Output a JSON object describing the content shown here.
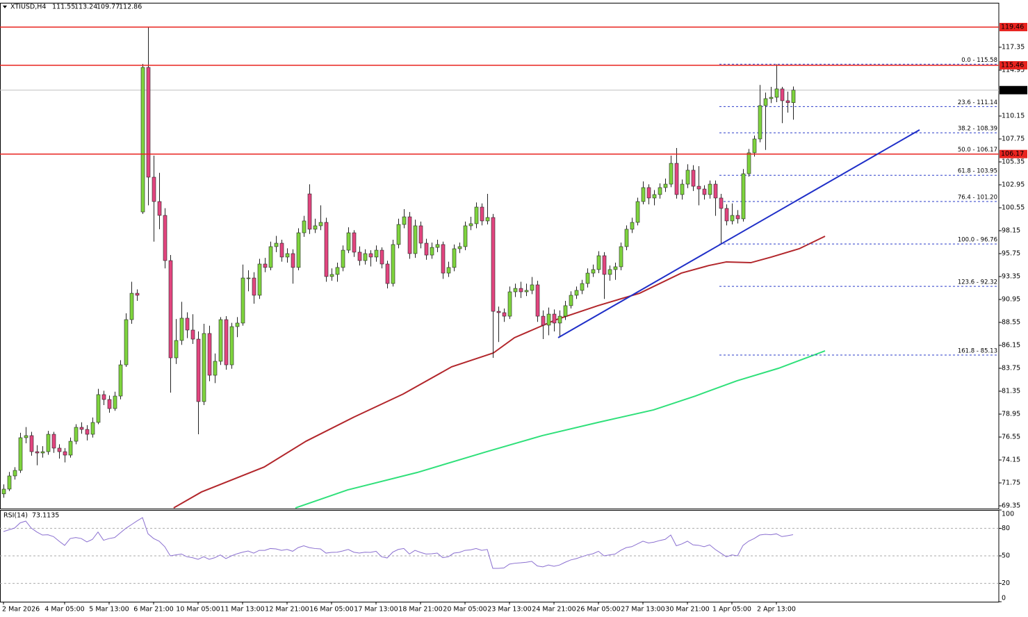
{
  "chart_data": {
    "type": "candlestick",
    "symbol": "XTIUSD,H4",
    "categories": [
      "2 Mar 2026",
      null,
      null,
      null,
      null,
      null,
      null,
      null,
      null,
      null,
      null,
      "4 Mar 05:00",
      null,
      null,
      null,
      null,
      null,
      null,
      null,
      "5 Mar 13:00",
      null,
      null,
      null,
      null,
      null,
      null,
      null,
      "6 Mar 21:00",
      null,
      null,
      null,
      null,
      null,
      null,
      null,
      "10 Mar 05:00",
      null,
      null,
      null,
      null,
      null,
      null,
      null,
      "11 Mar 13:00",
      null,
      null,
      null,
      null,
      null,
      null,
      null,
      "12 Mar 21:00",
      null,
      null,
      null,
      null,
      null,
      null,
      null,
      "16 Mar 05:00",
      null,
      null,
      null,
      null,
      null,
      null,
      null,
      "17 Mar 13:00",
      null,
      null,
      null,
      null,
      null,
      null,
      null,
      "18 Mar 21:00",
      null,
      null,
      null,
      null,
      null,
      null,
      null,
      "20 Mar 05:00",
      null,
      null,
      null,
      null,
      null,
      null,
      null,
      "23 Mar 13:00",
      null,
      null,
      null,
      null,
      null,
      null,
      null,
      "24 Mar 21:00",
      null,
      null,
      null,
      null,
      null,
      null,
      null,
      "26 Mar 05:00",
      null,
      null,
      null,
      null,
      null,
      null,
      null,
      "27 Mar 13:00",
      null,
      null,
      null,
      null,
      null,
      null,
      null,
      "30 Mar 21:00",
      null,
      null,
      null,
      null,
      null,
      null,
      null,
      "1 Apr 05:00",
      null,
      null,
      null,
      null,
      null,
      null,
      null,
      "2 Apr 13:00",
      null,
      null,
      null
    ],
    "ohlc": [
      [
        70.6,
        71.6,
        70.2,
        71.1
      ],
      [
        71.1,
        72.9,
        70.9,
        72.48
      ],
      [
        72.48,
        73.4,
        72.1,
        73.06
      ],
      [
        73.06,
        77.0,
        72.8,
        76.48
      ],
      [
        76.48,
        77.6,
        75.9,
        76.7
      ],
      [
        76.7,
        77.1,
        74.6,
        75.02
      ],
      [
        75.02,
        75.7,
        73.6,
        74.88
      ],
      [
        74.88,
        75.6,
        74.4,
        75.02
      ],
      [
        75.02,
        77.2,
        74.7,
        76.84
      ],
      [
        76.84,
        77.1,
        74.9,
        75.39
      ],
      [
        75.39,
        75.8,
        74.3,
        75.02
      ],
      [
        75.02,
        75.4,
        73.9,
        74.66
      ],
      [
        74.66,
        76.5,
        74.4,
        76.11
      ],
      [
        76.11,
        77.9,
        75.8,
        77.57
      ],
      [
        77.57,
        78.1,
        76.9,
        77.35
      ],
      [
        77.35,
        77.8,
        76.2,
        76.84
      ],
      [
        76.84,
        78.6,
        76.5,
        78.08
      ],
      [
        78.08,
        81.6,
        77.9,
        80.99
      ],
      [
        80.99,
        81.4,
        79.9,
        80.48
      ],
      [
        80.48,
        80.9,
        79.1,
        79.53
      ],
      [
        79.53,
        81.3,
        79.3,
        80.84
      ],
      [
        80.84,
        84.6,
        80.5,
        84.11
      ],
      [
        84.11,
        89.5,
        83.9,
        88.84
      ],
      [
        88.84,
        92.8,
        88.4,
        91.6
      ],
      [
        91.6,
        92.0,
        90.8,
        91.39
      ],
      [
        100.11,
        115.6,
        99.9,
        115.24
      ],
      [
        115.24,
        119.46,
        100.8,
        103.75
      ],
      [
        103.75,
        106.0,
        97.0,
        101.2
      ],
      [
        101.2,
        104.2,
        98.3,
        99.75
      ],
      [
        99.75,
        100.5,
        94.2,
        95.02
      ],
      [
        95.02,
        95.6,
        81.2,
        84.84
      ],
      [
        84.84,
        88.9,
        84.2,
        86.66
      ],
      [
        86.66,
        90.7,
        86.2,
        88.99
      ],
      [
        88.99,
        89.6,
        86.9,
        87.75
      ],
      [
        87.75,
        89.4,
        86.3,
        86.8
      ],
      [
        86.8,
        87.6,
        76.84,
        80.26
      ],
      [
        80.26,
        88.4,
        79.9,
        87.39
      ],
      [
        87.39,
        88.2,
        82.4,
        83.02
      ],
      [
        83.02,
        85.3,
        82.2,
        84.48
      ],
      [
        84.48,
        89.1,
        84.1,
        88.84
      ],
      [
        88.84,
        89.2,
        83.6,
        84.11
      ],
      [
        84.11,
        88.5,
        83.7,
        88.11
      ],
      [
        88.11,
        89.1,
        87.0,
        88.48
      ],
      [
        88.48,
        94.6,
        88.2,
        93.2
      ],
      [
        93.2,
        94.0,
        91.8,
        93.2
      ],
      [
        93.2,
        93.8,
        90.5,
        91.39
      ],
      [
        91.39,
        95.2,
        91.0,
        94.66
      ],
      [
        94.66,
        95.3,
        93.8,
        94.3
      ],
      [
        94.3,
        97.0,
        94.0,
        96.48
      ],
      [
        96.48,
        97.6,
        95.9,
        96.84
      ],
      [
        96.84,
        97.2,
        94.9,
        95.39
      ],
      [
        95.39,
        96.3,
        94.8,
        95.75
      ],
      [
        95.75,
        96.2,
        92.6,
        94.3
      ],
      [
        94.3,
        98.4,
        94.0,
        97.93
      ],
      [
        97.93,
        99.7,
        97.5,
        99.17
      ],
      [
        102.0,
        103.0,
        97.8,
        98.3
      ],
      [
        98.3,
        99.4,
        97.9,
        98.66
      ],
      [
        98.66,
        100.8,
        98.2,
        99.02
      ],
      [
        99.02,
        99.5,
        92.8,
        93.35
      ],
      [
        93.35,
        94.2,
        92.9,
        93.57
      ],
      [
        93.57,
        94.8,
        92.8,
        94.3
      ],
      [
        94.3,
        96.6,
        93.9,
        96.11
      ],
      [
        96.11,
        98.5,
        95.8,
        97.93
      ],
      [
        97.93,
        98.2,
        95.4,
        95.9
      ],
      [
        95.9,
        96.5,
        94.5,
        95.02
      ],
      [
        95.02,
        96.2,
        94.6,
        95.75
      ],
      [
        95.75,
        96.1,
        94.4,
        95.39
      ],
      [
        95.39,
        96.6,
        94.9,
        96.11
      ],
      [
        96.11,
        96.4,
        94.2,
        94.66
      ],
      [
        94.66,
        95.0,
        92.1,
        92.62
      ],
      [
        92.62,
        97.2,
        92.3,
        96.7
      ],
      [
        96.7,
        99.4,
        96.3,
        98.8
      ],
      [
        98.8,
        100.4,
        98.4,
        99.6
      ],
      [
        99.6,
        100.1,
        95.2,
        95.75
      ],
      [
        95.75,
        99.3,
        95.3,
        98.66
      ],
      [
        98.66,
        99.1,
        96.3,
        96.84
      ],
      [
        96.84,
        97.3,
        95.1,
        95.6
      ],
      [
        95.6,
        96.9,
        95.2,
        96.4
      ],
      [
        96.4,
        97.2,
        95.9,
        96.7
      ],
      [
        96.7,
        97.0,
        93.1,
        93.71
      ],
      [
        93.71,
        94.9,
        93.3,
        94.3
      ],
      [
        94.3,
        96.7,
        93.9,
        96.26
      ],
      [
        96.26,
        96.9,
        95.8,
        96.48
      ],
      [
        96.48,
        99.1,
        96.1,
        98.66
      ],
      [
        98.66,
        99.6,
        98.2,
        98.88
      ],
      [
        98.88,
        101.1,
        98.4,
        100.62
      ],
      [
        100.62,
        101.0,
        98.7,
        99.17
      ],
      [
        99.17,
        102.0,
        98.8,
        99.53
      ],
      [
        99.53,
        99.9,
        84.84,
        89.71
      ],
      [
        89.71,
        90.2,
        86.5,
        89.57
      ],
      [
        89.57,
        90.0,
        88.6,
        89.2
      ],
      [
        89.2,
        92.3,
        88.9,
        91.75
      ],
      [
        91.75,
        92.6,
        91.2,
        92.11
      ],
      [
        92.11,
        92.8,
        91.1,
        91.75
      ],
      [
        91.75,
        92.6,
        91.3,
        91.9
      ],
      [
        91.9,
        93.3,
        91.5,
        92.48
      ],
      [
        92.48,
        92.9,
        88.6,
        89.2
      ],
      [
        89.2,
        89.8,
        86.8,
        88.26
      ],
      [
        88.26,
        90.1,
        87.2,
        89.42
      ],
      [
        89.42,
        89.9,
        87.6,
        88.48
      ],
      [
        88.48,
        89.8,
        87.0,
        89.2
      ],
      [
        89.2,
        90.8,
        88.8,
        90.3
      ],
      [
        90.3,
        91.8,
        90.0,
        91.39
      ],
      [
        91.39,
        92.3,
        91.0,
        91.9
      ],
      [
        91.9,
        93.0,
        91.5,
        92.62
      ],
      [
        92.62,
        94.2,
        92.2,
        93.71
      ],
      [
        93.71,
        94.6,
        93.3,
        94.08
      ],
      [
        94.08,
        96.0,
        93.7,
        95.53
      ],
      [
        95.53,
        95.9,
        91.0,
        93.57
      ],
      [
        93.57,
        94.5,
        92.9,
        94.08
      ],
      [
        94.08,
        94.8,
        93.0,
        94.37
      ],
      [
        94.37,
        96.9,
        94.0,
        96.48
      ],
      [
        96.48,
        98.7,
        96.1,
        98.3
      ],
      [
        98.3,
        99.5,
        97.9,
        99.02
      ],
      [
        99.02,
        101.6,
        98.7,
        101.2
      ],
      [
        101.2,
        103.3,
        100.9,
        102.66
      ],
      [
        102.66,
        103.0,
        100.9,
        101.57
      ],
      [
        101.57,
        102.4,
        100.8,
        101.93
      ],
      [
        101.93,
        103.1,
        101.5,
        102.66
      ],
      [
        102.66,
        103.6,
        102.2,
        103.02
      ],
      [
        103.02,
        106.0,
        102.7,
        105.2
      ],
      [
        105.2,
        106.8,
        101.5,
        101.93
      ],
      [
        101.93,
        103.5,
        101.4,
        103.02
      ],
      [
        103.02,
        105.1,
        102.6,
        104.48
      ],
      [
        104.48,
        105.0,
        102.3,
        102.8
      ],
      [
        102.8,
        104.9,
        100.8,
        102.51
      ],
      [
        102.51,
        102.9,
        101.4,
        101.93
      ],
      [
        101.93,
        103.4,
        101.5,
        103.02
      ],
      [
        103.02,
        103.4,
        99.7,
        101.57
      ],
      [
        101.57,
        102.0,
        96.76,
        100.48
      ],
      [
        100.48,
        100.9,
        98.7,
        99.17
      ],
      [
        99.17,
        101.0,
        98.8,
        99.75
      ],
      [
        99.75,
        100.3,
        98.9,
        99.39
      ],
      [
        99.39,
        104.6,
        99.1,
        104.11
      ],
      [
        104.11,
        106.7,
        103.8,
        106.3
      ],
      [
        106.3,
        108.1,
        105.9,
        107.75
      ],
      [
        107.75,
        113.4,
        107.4,
        111.24
      ],
      [
        111.24,
        112.6,
        106.6,
        111.97
      ],
      [
        111.97,
        113.2,
        111.5,
        112.11
      ],
      [
        112.11,
        115.58,
        111.6,
        112.99
      ],
      [
        112.99,
        113.2,
        109.4,
        111.75
      ],
      [
        111.75,
        112.7,
        110.5,
        111.55
      ],
      [
        111.55,
        113.24,
        109.77,
        112.86
      ]
    ],
    "up_color": "#7ed43e",
    "down_color": "#e2457f",
    "ylim": [
      69.06,
      121.93
    ],
    "yticks": [
      69.35,
      71.75,
      74.15,
      76.55,
      78.95,
      81.35,
      83.75,
      86.15,
      88.55,
      90.95,
      93.35,
      95.75,
      98.15,
      100.55,
      102.95,
      105.35,
      107.75,
      110.15,
      114.95,
      117.35
    ],
    "resistance_levels": [
      119.46,
      115.46,
      106.17
    ],
    "level_color": "#e8231f",
    "current_price_color": "#c0c0c0",
    "moving_averages": [
      {
        "color": "#b2262b",
        "x": [
          30.6,
          35.6,
          46.9,
          54.4,
          63.1,
          71.9,
          80.6,
          88.1,
          91.9,
          99.4,
          106.9,
          114.4,
          121.9,
          126.9,
          130,
          134.4,
          138.1,
          143.1,
          147.75
        ],
        "values": [
          69.13,
          70.8,
          73.42,
          76.11,
          78.66,
          81.06,
          83.9,
          85.35,
          86.95,
          88.84,
          90.3,
          91.6,
          93.71,
          94.51,
          94.88,
          94.8,
          95.39,
          96.26,
          97.57
        ]
      },
      {
        "color": "#2fe07a",
        "x": [
          52.5,
          61.9,
          74.4,
          86.9,
          96.9,
          106.9,
          116.9,
          124.4,
          131.9,
          139.4,
          147.75
        ],
        "values": [
          69.13,
          71.02,
          72.84,
          75.02,
          76.7,
          78.08,
          79.39,
          80.84,
          82.44,
          83.75,
          85.57
        ]
      }
    ],
    "trendline": {
      "color": "#1f2fc8",
      "x": [
        99.75,
        164.75
      ],
      "values": [
        86.95,
        108.7
      ]
    },
    "fibonacci": {
      "color": "#2a3bc9",
      "start_x": 128.75,
      "levels": [
        {
          "value": 115.58,
          "label": "0.0 - 115.58"
        },
        {
          "value": 111.14,
          "label": "23.6 - 111.14"
        },
        {
          "value": 108.39,
          "label": "38.2 - 108.39"
        },
        {
          "value": 106.17,
          "label": "50.0 - 106.17"
        },
        {
          "value": 103.95,
          "label": "61.8 - 103.95"
        },
        {
          "value": 101.2,
          "label": "76.4 - 101.20"
        },
        {
          "value": 96.76,
          "label": "100.0 - 96.76"
        },
        {
          "value": 92.32,
          "label": "123.6 - 92.32"
        },
        {
          "value": 85.13,
          "label": "161.8 - 85.13"
        }
      ]
    },
    "rsi": {
      "name": "RSI(14)",
      "color": "#8a6fd0",
      "ylim": [
        0,
        100
      ],
      "yticks": [
        100,
        80,
        50,
        20,
        0
      ],
      "values": [
        76.5,
        78.4,
        80.3,
        86,
        87.9,
        80.3,
        76,
        72.7,
        73,
        71,
        66,
        61.4,
        68.9,
        70,
        68.9,
        65.2,
        68,
        76,
        67,
        68.9,
        70,
        75,
        80,
        84,
        88,
        91.7,
        74,
        68.9,
        66,
        60,
        50,
        51,
        52,
        49,
        48,
        46.2,
        49,
        46.2,
        48,
        51,
        47,
        50,
        52.3,
        54,
        55.3,
        53,
        56,
        56,
        58,
        57.6,
        56,
        57,
        55,
        59,
        61,
        59,
        58,
        57.6,
        53,
        53.8,
        54,
        55.3,
        57,
        54,
        53,
        54,
        53.8,
        55,
        49,
        47.7,
        54,
        57,
        58,
        52,
        56,
        53.8,
        52,
        52.3,
        53,
        48,
        49,
        53,
        53.8,
        56,
        56.5,
        58,
        56,
        57,
        36.4,
        36.4,
        36.8,
        41,
        42,
        42.4,
        43,
        44,
        39,
        38,
        40,
        38.6,
        40,
        43,
        45.5,
        47,
        49,
        51,
        52.3,
        55,
        50,
        51,
        52,
        56,
        59,
        60,
        63,
        66,
        64,
        65,
        66.7,
        68,
        72.7,
        61,
        63,
        66,
        62,
        61.5,
        60,
        62,
        57,
        53,
        49,
        51,
        50,
        61.4,
        66,
        68.9,
        72.7,
        73.5,
        73,
        74,
        71,
        72,
        73.1135
      ]
    }
  }
}
